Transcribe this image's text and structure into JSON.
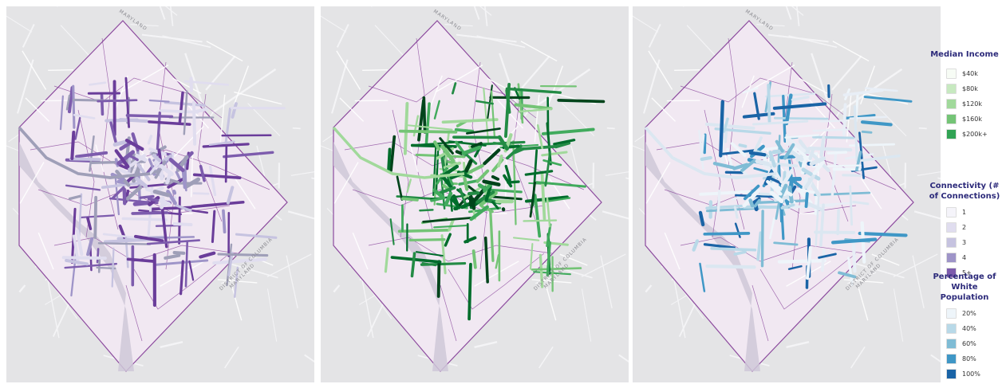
{
  "map_labels": {
    "maryland_top": "MARYLAND",
    "maryland_right": "MARYLAND",
    "district": "DISTRICT OF COLUMBIA"
  },
  "legend_income": {
    "title": "Median Income",
    "items": [
      {
        "label": "$40k",
        "color": "#f7fcf5"
      },
      {
        "label": "$80k",
        "color": "#c7e9c0"
      },
      {
        "label": "$120k",
        "color": "#a1d99b"
      },
      {
        "label": "$160k",
        "color": "#74c476"
      },
      {
        "label": "$200k+",
        "color": "#31a354"
      }
    ]
  },
  "legend_connectivity": {
    "title": "Connectivity (# of Connections)",
    "items": [
      {
        "label": "1",
        "color": "#f5f4fa"
      },
      {
        "label": "2",
        "color": "#e0ddef"
      },
      {
        "label": "3",
        "color": "#c6c3e0"
      },
      {
        "label": "4",
        "color": "#9e94c8"
      },
      {
        "label": "5+",
        "color": "#7d5cad"
      }
    ]
  },
  "legend_white": {
    "title": "Percentage of White Population",
    "items": [
      {
        "label": "20%",
        "color": "#eef5fa"
      },
      {
        "label": "40%",
        "color": "#b8d9e8"
      },
      {
        "label": "60%",
        "color": "#7fbcd5"
      },
      {
        "label": "80%",
        "color": "#3f97c6"
      },
      {
        "label": "100%",
        "color": "#1a64a6"
      }
    ]
  },
  "colors": {
    "map_background": "#e4e4e6",
    "district_fill": "#f1e8f2",
    "boundary": "#8c4a9e",
    "river": "#cfc8d8"
  }
}
